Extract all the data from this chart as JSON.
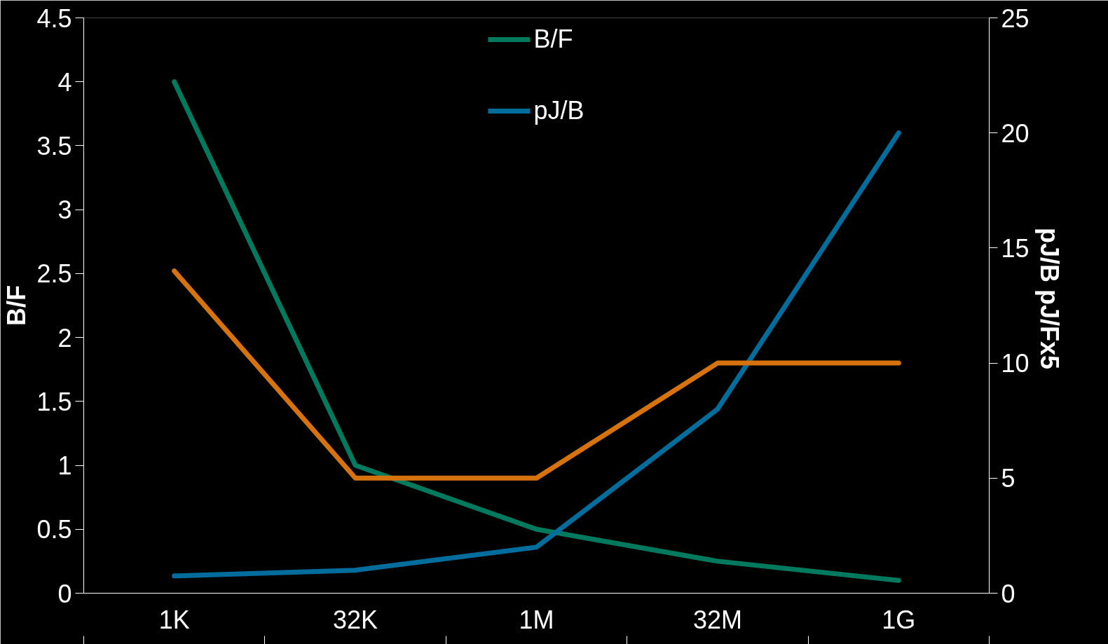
{
  "chart_data": {
    "type": "line",
    "categories": [
      "1K",
      "32K",
      "1M",
      "32M",
      "1G"
    ],
    "ylabel": "B/F",
    "y2label": "pJ/B   pJ/Fx5",
    "ylim": [
      0,
      4.5
    ],
    "yticks": [
      0,
      0.5,
      1,
      1.5,
      2,
      2.5,
      3,
      3.5,
      4,
      4.5
    ],
    "y2lim": [
      0,
      25
    ],
    "y2ticks": [
      0,
      5,
      10,
      15,
      20,
      25
    ],
    "series": [
      {
        "name": "B/F",
        "color": "#007a5e",
        "values": [
          4,
          1,
          0.5,
          0.25,
          0.1
        ]
      },
      {
        "name": "pJ/B",
        "color": "#006d9c",
        "values": [
          0.75,
          1,
          2,
          8,
          20
        ],
        "axis": "y2"
      },
      {
        "color": "#d6730f",
        "values": [
          14,
          5,
          5,
          10,
          10
        ],
        "axis": "y2"
      }
    ],
    "legend": "top",
    "grid": false
  }
}
